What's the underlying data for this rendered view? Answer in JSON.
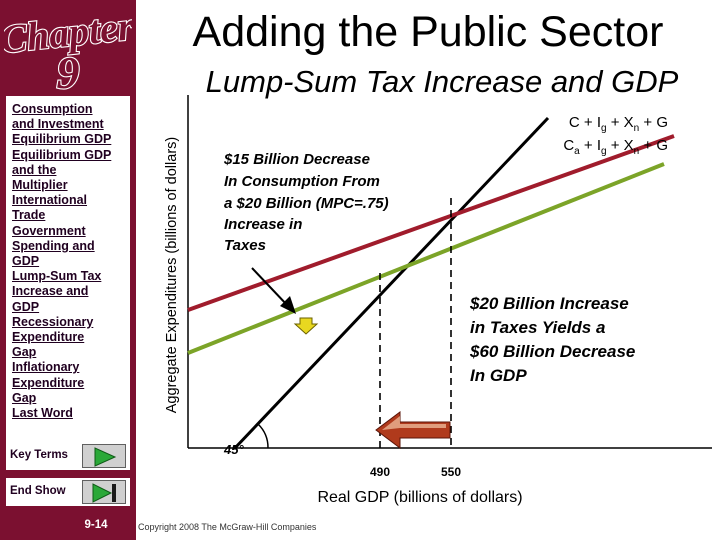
{
  "slide": {
    "title": "Adding the Public Sector",
    "subtitle": "Lump-Sum Tax Increase and GDP",
    "number": "9-14",
    "copyright": "Copyright 2008 The McGraw-Hill Companies"
  },
  "sidebar": {
    "chapter_word": "Chapter",
    "chapter_number": "9",
    "nav": [
      "Consumption",
      "and Investment",
      "Equilibrium GDP",
      "Equilibrium GDP",
      "and the",
      "Multiplier",
      "International",
      "Trade",
      "Government",
      "Spending and",
      "GDP",
      "Lump-Sum Tax",
      "Increase and",
      "GDP",
      "Recessionary",
      "Expenditure",
      "Gap",
      "Inflationary",
      "Expenditure",
      "Gap",
      "Last Word"
    ],
    "key_terms_label": "Key Terms",
    "end_show_label": "End Show"
  },
  "chart": {
    "y_axis_label": "Aggregate Expenditures (billions of dollars)",
    "x_axis_label": "Real GDP (billions of dollars)",
    "upper_line_label": {
      "c": "C + I",
      "s1": "g",
      "m1": " + X",
      "s2": "n",
      "e": " + G"
    },
    "lower_line_label": {
      "c": "C",
      "s0": "a",
      "m0": " + I",
      "s1": "g",
      "m1": " + X",
      "s2": "n",
      "e": " + G"
    },
    "annotation_left": [
      "$15 Billion Decrease",
      "In Consumption From",
      "a $20 Billion (MPC=.75)",
      "Increase in",
      "Taxes"
    ],
    "annotation_right": [
      "$20 Billion Increase",
      "in Taxes Yields a",
      "$60 Billion Decrease",
      "In GDP"
    ],
    "angle_label": "45°",
    "x_ticks": [
      "490",
      "550"
    ],
    "colors": {
      "sidebar": "#7b1030",
      "upper_line": "#a01c2c",
      "lower_line": "#7ca428",
      "line_45": "#000000",
      "arrow_fill": "#b03a1c",
      "arrow_light": "#f5c8a6",
      "pointer_fill": "#e8d820"
    }
  }
}
